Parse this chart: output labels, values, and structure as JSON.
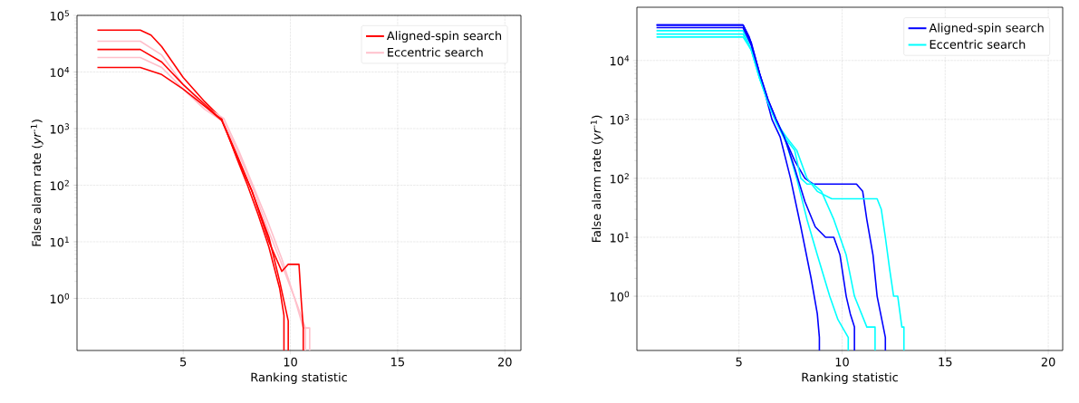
{
  "chart_data": [
    {
      "type": "line",
      "xlabel": "Ranking statistic",
      "ylabel": "False alarm rate (*yr*$^{-1}$)",
      "log": "y",
      "grid": true,
      "legend": "top right",
      "marker": "none",
      "line_style": "solid",
      "xlim": [
        0.05,
        20.75
      ],
      "ylim": [
        0.12,
        100000
      ],
      "xticks": [
        5,
        10,
        15,
        20
      ],
      "yticks": [
        {
          "value": 1,
          "label": "10$^{0}$"
        },
        {
          "value": 10,
          "label": "10$^{1}$"
        },
        {
          "value": 100,
          "label": "10$^{2}$"
        },
        {
          "value": 1000,
          "label": "10$^{3}$"
        },
        {
          "value": 10000,
          "label": "10$^{4}$"
        },
        {
          "value": 100000,
          "label": "10$^{5}$"
        }
      ],
      "series": [
        {
          "name": "Aligned-spin search",
          "color": "#ff0000",
          "x": [
            1,
            3,
            3.5,
            4,
            4.5,
            5,
            6,
            6.8,
            7.5,
            8,
            8.5,
            9,
            9.5,
            9.7,
            9.7
          ],
          "values": [
            55000,
            55000,
            45000,
            28000,
            15000,
            8000,
            3000,
            1500,
            300,
            100,
            30,
            8,
            1.5,
            0.5,
            0.12
          ]
        },
        {
          "name": "Eccentric search",
          "color": "#ffc0cb",
          "x": [
            1,
            3,
            4,
            5,
            6,
            6.9,
            7.6,
            8.3,
            9,
            9.6,
            10.2,
            10.6,
            10.9,
            10.9
          ],
          "values": [
            35000,
            35000,
            20000,
            6000,
            2500,
            1500,
            400,
            90,
            20,
            5,
            1,
            0.3,
            0.3,
            0.12
          ]
        },
        {
          "color": "#ffc0cb",
          "x": [
            1,
            3,
            4,
            5,
            6,
            6.9,
            7.6,
            8.3,
            9,
            9.6,
            10.3,
            10.7,
            10.7
          ],
          "values": [
            18000,
            18000,
            12000,
            5000,
            2200,
            1300,
            350,
            80,
            15,
            4,
            0.8,
            0.3,
            0.12
          ]
        },
        {
          "color": "#ff0000",
          "x": [
            1,
            3,
            4,
            5,
            6,
            6.8,
            7.5,
            8.2,
            9,
            9.5,
            9.9,
            9.9
          ],
          "values": [
            25000,
            25000,
            15000,
            6000,
            2700,
            1400,
            320,
            80,
            12,
            2,
            0.4,
            0.12
          ]
        },
        {
          "color": "#ff0000",
          "x": [
            1,
            3,
            4,
            5,
            6,
            6.8,
            7.5,
            8.2,
            9,
            9.6,
            9.9,
            10.4,
            10.5,
            10.6,
            10.6
          ],
          "values": [
            12000,
            12000,
            9000,
            5000,
            2500,
            1400,
            350,
            80,
            10,
            3,
            4,
            4,
            1,
            0.3,
            0.12
          ]
        }
      ]
    },
    {
      "type": "line",
      "xlabel": "Ranking statistic",
      "ylabel": "False alarm rate (*yr*$^{-1}$)",
      "log": "y",
      "grid": true,
      "legend": "top right",
      "marker": "none",
      "line_style": "solid",
      "xlim": [
        0.05,
        20.7
      ],
      "ylim": [
        0.12,
        80000
      ],
      "xticks": [
        5,
        10,
        15,
        20
      ],
      "yticks": [
        {
          "value": 1,
          "label": "10$^{0}$"
        },
        {
          "value": 10,
          "label": "10$^{1}$"
        },
        {
          "value": 100,
          "label": "10$^{2}$"
        },
        {
          "value": 1000,
          "label": "10$^{3}$"
        },
        {
          "value": 10000,
          "label": "10$^{4}$"
        }
      ],
      "series": [
        {
          "name": "Aligned-spin search",
          "color": "#0000ff",
          "x": [
            1,
            5.2,
            5.5,
            5.9,
            6.3,
            6.6,
            7,
            7.5,
            8,
            8.5,
            8.8,
            8.9,
            8.9
          ],
          "values": [
            40000,
            40000,
            25000,
            8000,
            2500,
            1000,
            500,
            100,
            15,
            2,
            0.5,
            0.2,
            0.12
          ]
        },
        {
          "name": "Eccentric search",
          "color": "#00ffff",
          "x": [
            1,
            5.2,
            5.6,
            6,
            6.4,
            6.8,
            7.3,
            7.8,
            8.3,
            8.8,
            9.4,
            9.8,
            10.3,
            10.3
          ],
          "values": [
            25000,
            25000,
            15000,
            5000,
            2000,
            900,
            400,
            100,
            20,
            5,
            1,
            0.4,
            0.2,
            0.12
          ]
        },
        {
          "color": "#0000ff",
          "x": [
            1,
            5.2,
            5.6,
            6,
            6.4,
            6.8,
            7.2,
            7.7,
            8.2,
            8.6,
            9,
            9.6,
            10.2,
            10.7,
            11,
            11.2,
            11.5,
            11.7,
            12,
            12.1,
            12.1
          ],
          "values": [
            40000,
            40000,
            20000,
            6000,
            2200,
            1000,
            500,
            200,
            100,
            80,
            80,
            80,
            80,
            80,
            60,
            20,
            5,
            1,
            0.3,
            0.2,
            0.12
          ]
        },
        {
          "color": "#00ffff",
          "x": [
            1,
            5.2,
            5.6,
            6,
            6.4,
            6.8,
            7.3,
            7.8,
            8.3,
            8.8,
            9.5,
            10.5,
            11.7,
            11.9,
            12.1,
            12.3,
            12.5,
            12.7,
            12.9,
            13,
            13
          ],
          "values": [
            28000,
            28000,
            15000,
            5000,
            2000,
            900,
            500,
            300,
            100,
            60,
            45,
            45,
            45,
            30,
            10,
            3,
            1,
            1,
            0.3,
            0.3,
            0.12
          ]
        },
        {
          "color": "#00ffff",
          "x": [
            1,
            5.2,
            5.6,
            6,
            6.4,
            6.8,
            7.2,
            7.7,
            8,
            8.3,
            8.6,
            9,
            9.6,
            10.2,
            10.6,
            11.2,
            11.6,
            11.6
          ],
          "values": [
            32000,
            32000,
            15000,
            5000,
            2000,
            900,
            500,
            300,
            100,
            80,
            80,
            60,
            20,
            5,
            1,
            0.3,
            0.3,
            0.12
          ]
        },
        {
          "color": "#0000ff",
          "x": [
            1,
            5.2,
            5.6,
            6,
            6.4,
            6.8,
            7.2,
            7.7,
            8.2,
            8.7,
            9.2,
            9.6,
            9.9,
            10.2,
            10.4,
            10.6,
            10.6
          ],
          "values": [
            36000,
            36000,
            18000,
            6000,
            2200,
            1000,
            500,
            150,
            40,
            15,
            10,
            10,
            5,
            1,
            0.5,
            0.3,
            0.12
          ]
        }
      ]
    }
  ]
}
